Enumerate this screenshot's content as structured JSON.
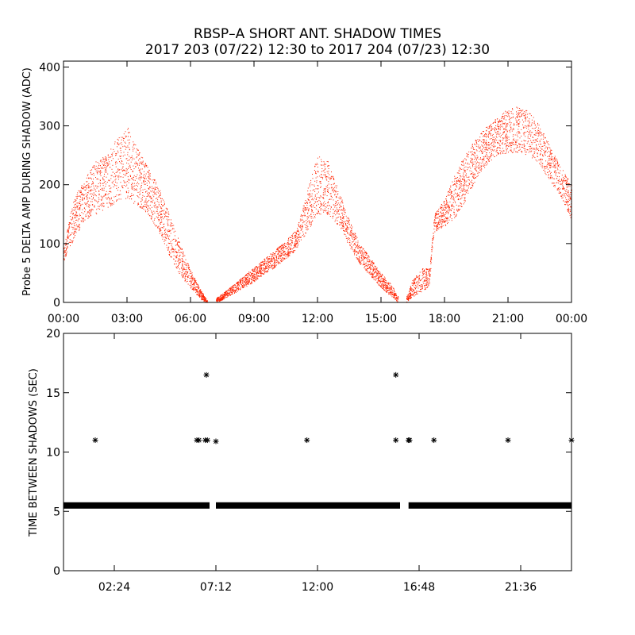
{
  "title_line1": "RBSP–A SHORT ANT. SHADOW TIMES",
  "title_line2": "2017 203 (07/22) 12:30 to 2017 204 (07/23) 12:30",
  "colors": {
    "amp_points": "#ff2200",
    "shadow_points": "#000000",
    "axes": "#000000"
  },
  "chart_data": [
    {
      "type": "scatter",
      "name": "delta-amp",
      "title": "",
      "xlabel": "",
      "ylabel": "Probe 5 DELTA AMP DURING SHADOW (ADC)",
      "xlim_hours": [
        0,
        24
      ],
      "ylim": [
        0,
        410
      ],
      "x_tick_values_hours": [
        0,
        3,
        6,
        9,
        12,
        15,
        18,
        21,
        24
      ],
      "x_tick_labels": [
        "00:00",
        "03:00",
        "06:00",
        "09:00",
        "12:00",
        "15:00",
        "18:00",
        "21:00",
        "00:00"
      ],
      "y_tick_values": [
        0,
        100,
        200,
        300,
        400
      ],
      "y_tick_labels": [
        "0",
        "100",
        "200",
        "300",
        "400"
      ],
      "grid": false,
      "marker": "dot",
      "envelope": {
        "description": "dense scatter of points between lower and upper envelope (hours, ADC)",
        "segments": [
          {
            "x": [
              0.0,
              0.5,
              1.0,
              1.5,
              2.0,
              2.5,
              3.0,
              3.5,
              4.0,
              4.5,
              5.0,
              5.5,
              6.0,
              6.5,
              6.8
            ],
            "low": [
              70,
              110,
              140,
              150,
              160,
              170,
              175,
              165,
              150,
              120,
              80,
              45,
              25,
              5,
              0
            ],
            "high": [
              100,
              180,
              210,
              240,
              250,
              280,
              300,
              260,
              230,
              195,
              150,
              100,
              55,
              20,
              3
            ]
          },
          {
            "x": [
              7.2,
              7.5,
              8.0,
              8.5,
              9.0,
              9.5,
              10.0,
              10.5,
              11.0,
              11.5,
              12.0,
              12.5,
              13.0,
              13.5,
              14.0,
              14.5,
              15.0,
              15.5,
              15.8
            ],
            "low": [
              0,
              5,
              15,
              25,
              35,
              50,
              60,
              75,
              90,
              120,
              150,
              150,
              130,
              95,
              65,
              45,
              25,
              10,
              0
            ],
            "high": [
              8,
              15,
              30,
              45,
              60,
              75,
              90,
              105,
              125,
              190,
              250,
              240,
              190,
              140,
              100,
              75,
              50,
              30,
              10
            ]
          },
          {
            "x": [
              16.2,
              16.5,
              17.0,
              17.3,
              17.5,
              18.0,
              18.5,
              19.0,
              19.5,
              20.0,
              20.5,
              21.0,
              21.5,
              22.0,
              22.5,
              23.0,
              23.5,
              24.0
            ],
            "low": [
              0,
              10,
              20,
              30,
              120,
              130,
              145,
              175,
              210,
              235,
              250,
              255,
              255,
              250,
              235,
              205,
              180,
              140
            ],
            "high": [
              10,
              40,
              60,
              60,
              150,
              175,
              220,
              255,
              280,
              300,
              315,
              330,
              335,
              325,
              300,
              265,
              230,
              200
            ]
          }
        ]
      }
    },
    {
      "type": "scatter",
      "name": "time-between-shadows",
      "title": "",
      "xlabel": "",
      "ylabel": "TIME BETWEEN SHADOWS (SEC)",
      "xlim_hours": [
        0,
        24
      ],
      "ylim": [
        0,
        20
      ],
      "x_tick_values_hours": [
        2.4,
        7.2,
        12.0,
        16.8,
        21.6
      ],
      "x_tick_labels": [
        "02:24",
        "07:12",
        "12:00",
        "16:48",
        "21:36"
      ],
      "y_tick_values": [
        0,
        5,
        10,
        15,
        20
      ],
      "y_tick_labels": [
        "0",
        "5",
        "10",
        "15",
        "20"
      ],
      "grid": false,
      "marker": "asterisk",
      "baseline_value_sec": 5.5,
      "baseline_segments_hours": [
        [
          0.0,
          6.9
        ],
        [
          7.2,
          15.9
        ],
        [
          16.3,
          24.0
        ]
      ],
      "outliers": [
        {
          "x": 1.5,
          "y": 11.0
        },
        {
          "x": 6.3,
          "y": 11.0
        },
        {
          "x": 6.4,
          "y": 11.0
        },
        {
          "x": 6.7,
          "y": 11.0
        },
        {
          "x": 6.8,
          "y": 11.0
        },
        {
          "x": 6.75,
          "y": 16.5
        },
        {
          "x": 7.2,
          "y": 10.9
        },
        {
          "x": 11.5,
          "y": 11.0
        },
        {
          "x": 15.7,
          "y": 16.5
        },
        {
          "x": 15.7,
          "y": 11.0
        },
        {
          "x": 16.3,
          "y": 11.0
        },
        {
          "x": 16.35,
          "y": 11.0
        },
        {
          "x": 17.5,
          "y": 11.0
        },
        {
          "x": 21.0,
          "y": 11.0
        },
        {
          "x": 24.0,
          "y": 11.0
        }
      ]
    }
  ]
}
